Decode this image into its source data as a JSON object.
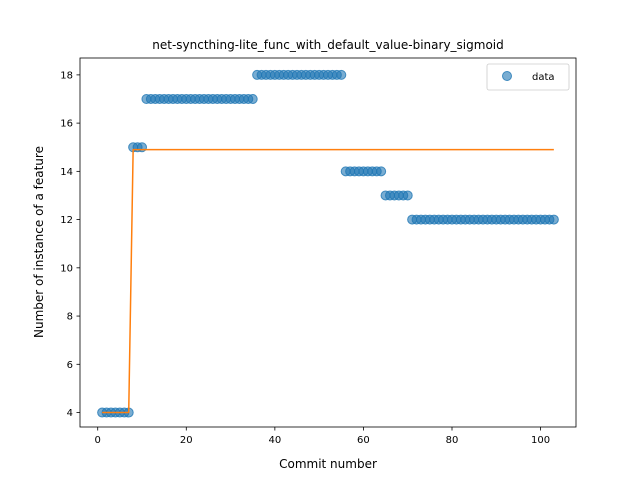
{
  "chart_data": {
    "type": "scatter",
    "title": "net-syncthing-lite_func_with_default_value-binary_sigmoid",
    "xlabel": "Commit number",
    "ylabel": "Number of instance of a feature",
    "xlim": [
      -4,
      108
    ],
    "ylim": [
      3.4,
      18.7
    ],
    "xticks": [
      0,
      20,
      40,
      60,
      80,
      100
    ],
    "yticks": [
      4,
      6,
      8,
      10,
      12,
      14,
      16,
      18
    ],
    "legend": {
      "position": "top-right",
      "entries": [
        "data"
      ]
    },
    "colors": {
      "points": "#1f77b4",
      "fit": "#ff7f0e"
    },
    "series": [
      {
        "name": "data",
        "kind": "points",
        "segments": [
          {
            "x_start": 1,
            "x_end": 7,
            "y": 4
          },
          {
            "x_start": 8,
            "x_end": 10,
            "y": 15
          },
          {
            "x_start": 11,
            "x_end": 35,
            "y": 17
          },
          {
            "x_start": 36,
            "x_end": 55,
            "y": 18
          },
          {
            "x_start": 56,
            "x_end": 64,
            "y": 14
          },
          {
            "x_start": 65,
            "x_end": 70,
            "y": 13
          },
          {
            "x_start": 71,
            "x_end": 103,
            "y": 12
          }
        ]
      },
      {
        "kind": "line",
        "points": [
          [
            1,
            4
          ],
          [
            7,
            4
          ],
          [
            8,
            14.9
          ],
          [
            103,
            14.9
          ]
        ]
      }
    ]
  }
}
